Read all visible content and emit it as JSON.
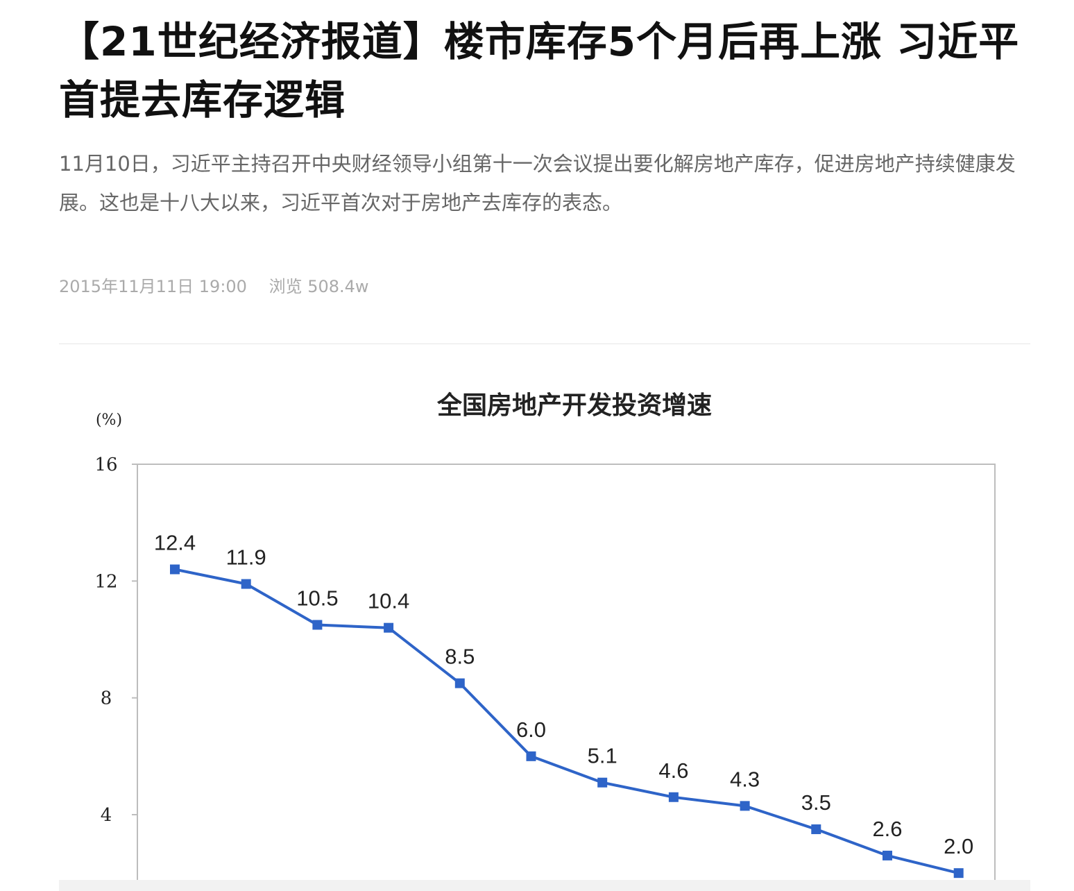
{
  "article": {
    "title": "【21世纪经济报道】楼市库存5个月后再上涨 习近平首提去库存逻辑",
    "summary": "11月10日，习近平主持召开中央财经领导小组第十一次会议提出要化解房地产库存，促进房地产持续健康发展。这也是十八大以来，习近平首次对于房地产去库存的表态。",
    "date": "2015年11月11日 19:00",
    "views": "浏览 508.4w"
  },
  "colors": {
    "series": "#2e64c8",
    "axis": "#bdbdbd",
    "title": "#111111",
    "meta": "#aaaaaa"
  },
  "chart_data": {
    "type": "line",
    "title": "全国房地产开发投资增速",
    "ylabel": "(%)",
    "ylim": [
      0,
      16
    ],
    "yticks": [
      4,
      8,
      12,
      16
    ],
    "grid": false,
    "series": [
      {
        "values": [
          12.4,
          11.9,
          10.5,
          10.4,
          8.5,
          6.0,
          5.1,
          4.6,
          4.3,
          3.5,
          2.6,
          2.0
        ],
        "labels": [
          "12.4",
          "11.9",
          "10.5",
          "10.4",
          "8.5",
          "6.0",
          "5.1",
          "4.6",
          "4.3",
          "3.5",
          "2.6",
          "2.0"
        ]
      }
    ]
  }
}
